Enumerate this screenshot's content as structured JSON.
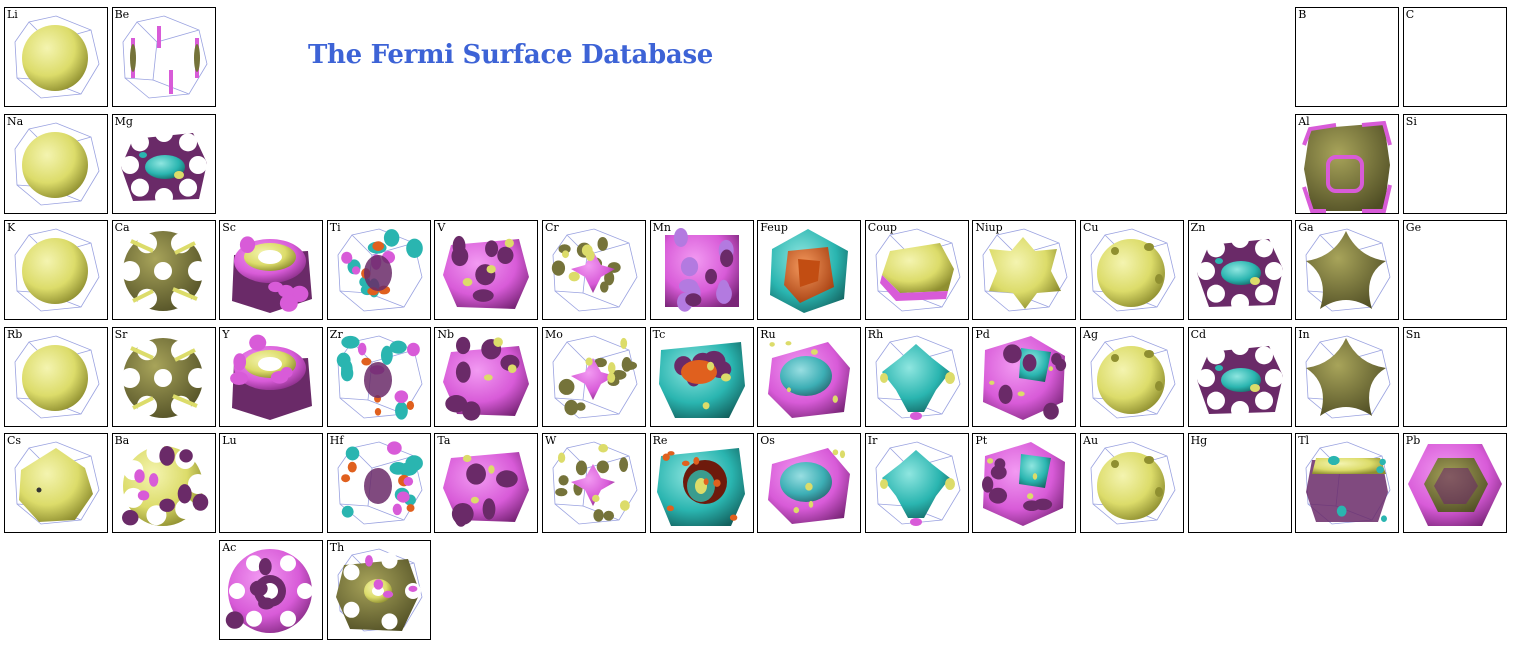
{
  "title": "The Fermi Surface Database",
  "elements": [
    {
      "symbol": "Li",
      "row": 0,
      "col": 0,
      "style": "sphere"
    },
    {
      "symbol": "Be",
      "row": 0,
      "col": 1,
      "style": "hex-thin"
    },
    {
      "symbol": "B",
      "row": 0,
      "col": 12,
      "style": "empty"
    },
    {
      "symbol": "C",
      "row": 0,
      "col": 13,
      "style": "empty"
    },
    {
      "symbol": "Na",
      "row": 1,
      "col": 0,
      "style": "sphere"
    },
    {
      "symbol": "Mg",
      "row": 1,
      "col": 1,
      "style": "hex-holes"
    },
    {
      "symbol": "Al",
      "row": 1,
      "col": 12,
      "style": "al"
    },
    {
      "symbol": "Si",
      "row": 1,
      "col": 13,
      "style": "empty"
    },
    {
      "symbol": "K",
      "row": 2,
      "col": 0,
      "style": "sphere"
    },
    {
      "symbol": "Ca",
      "row": 2,
      "col": 1,
      "style": "holey-olive"
    },
    {
      "symbol": "Sc",
      "row": 2,
      "col": 2,
      "style": "ring-magenta"
    },
    {
      "symbol": "Ti",
      "row": 2,
      "col": 3,
      "style": "teal-pieces"
    },
    {
      "symbol": "V",
      "row": 2,
      "col": 4,
      "style": "magenta-blob"
    },
    {
      "symbol": "Cr",
      "row": 2,
      "col": 5,
      "style": "scatter-blob"
    },
    {
      "symbol": "Mn",
      "row": 2,
      "col": 6,
      "style": "magenta-box"
    },
    {
      "symbol": "Feup",
      "row": 2,
      "col": 7,
      "style": "fe"
    },
    {
      "symbol": "Coup",
      "row": 2,
      "col": 8,
      "style": "co"
    },
    {
      "symbol": "Niup",
      "row": 2,
      "col": 9,
      "style": "spiky-yellow"
    },
    {
      "symbol": "Cu",
      "row": 2,
      "col": 10,
      "style": "necked"
    },
    {
      "symbol": "Zn",
      "row": 2,
      "col": 11,
      "style": "hex-holes"
    },
    {
      "symbol": "Ga",
      "row": 2,
      "col": 12,
      "style": "olive-star"
    },
    {
      "symbol": "Ge",
      "row": 2,
      "col": 13,
      "style": "empty"
    },
    {
      "symbol": "Rb",
      "row": 3,
      "col": 0,
      "style": "sphere"
    },
    {
      "symbol": "Sr",
      "row": 3,
      "col": 1,
      "style": "holey-olive"
    },
    {
      "symbol": "Y",
      "row": 3,
      "col": 2,
      "style": "ring-magenta"
    },
    {
      "symbol": "Zr",
      "row": 3,
      "col": 3,
      "style": "teal-pieces"
    },
    {
      "symbol": "Nb",
      "row": 3,
      "col": 4,
      "style": "magenta-blob"
    },
    {
      "symbol": "Mo",
      "row": 3,
      "col": 5,
      "style": "scatter-blob"
    },
    {
      "symbol": "Tc",
      "row": 3,
      "col": 6,
      "style": "teal-magenta"
    },
    {
      "symbol": "Ru",
      "row": 3,
      "col": 7,
      "style": "magenta-teal"
    },
    {
      "symbol": "Rh",
      "row": 3,
      "col": 8,
      "style": "teal-blob"
    },
    {
      "symbol": "Pd",
      "row": 3,
      "col": 9,
      "style": "pd"
    },
    {
      "symbol": "Ag",
      "row": 3,
      "col": 10,
      "style": "necked"
    },
    {
      "symbol": "Cd",
      "row": 3,
      "col": 11,
      "style": "hex-holes"
    },
    {
      "symbol": "In",
      "row": 3,
      "col": 12,
      "style": "olive-star"
    },
    {
      "symbol": "Sn",
      "row": 3,
      "col": 13,
      "style": "empty"
    },
    {
      "symbol": "Cs",
      "row": 4,
      "col": 0,
      "style": "cs"
    },
    {
      "symbol": "Ba",
      "row": 4,
      "col": 1,
      "style": "ba"
    },
    {
      "symbol": "Lu",
      "row": 4,
      "col": 2,
      "style": "empty"
    },
    {
      "symbol": "Hf",
      "row": 4,
      "col": 3,
      "style": "teal-pieces"
    },
    {
      "symbol": "Ta",
      "row": 4,
      "col": 4,
      "style": "magenta-blob"
    },
    {
      "symbol": "W",
      "row": 4,
      "col": 5,
      "style": "scatter-blob"
    },
    {
      "symbol": "Re",
      "row": 4,
      "col": 6,
      "style": "re"
    },
    {
      "symbol": "Os",
      "row": 4,
      "col": 7,
      "style": "magenta-teal"
    },
    {
      "symbol": "Ir",
      "row": 4,
      "col": 8,
      "style": "teal-blob"
    },
    {
      "symbol": "Pt",
      "row": 4,
      "col": 9,
      "style": "pd"
    },
    {
      "symbol": "Au",
      "row": 4,
      "col": 10,
      "style": "necked"
    },
    {
      "symbol": "Hg",
      "row": 4,
      "col": 11,
      "style": "empty"
    },
    {
      "symbol": "Tl",
      "row": 4,
      "col": 12,
      "style": "tl"
    },
    {
      "symbol": "Pb",
      "row": 4,
      "col": 13,
      "style": "pb"
    },
    {
      "symbol": "Ac",
      "row": 5,
      "col": 2,
      "style": "ac"
    },
    {
      "symbol": "Th",
      "row": 5,
      "col": 3,
      "style": "th"
    }
  ],
  "colors": {
    "title": "#3d63d6",
    "yellow": "#dcdc6a",
    "olive": "#75733a",
    "magenta": "#d85bd8",
    "purple": "#6a2a68",
    "teal": "#2ab5b0",
    "orange": "#e0601e",
    "bz_edge": "#9aa2e0"
  }
}
